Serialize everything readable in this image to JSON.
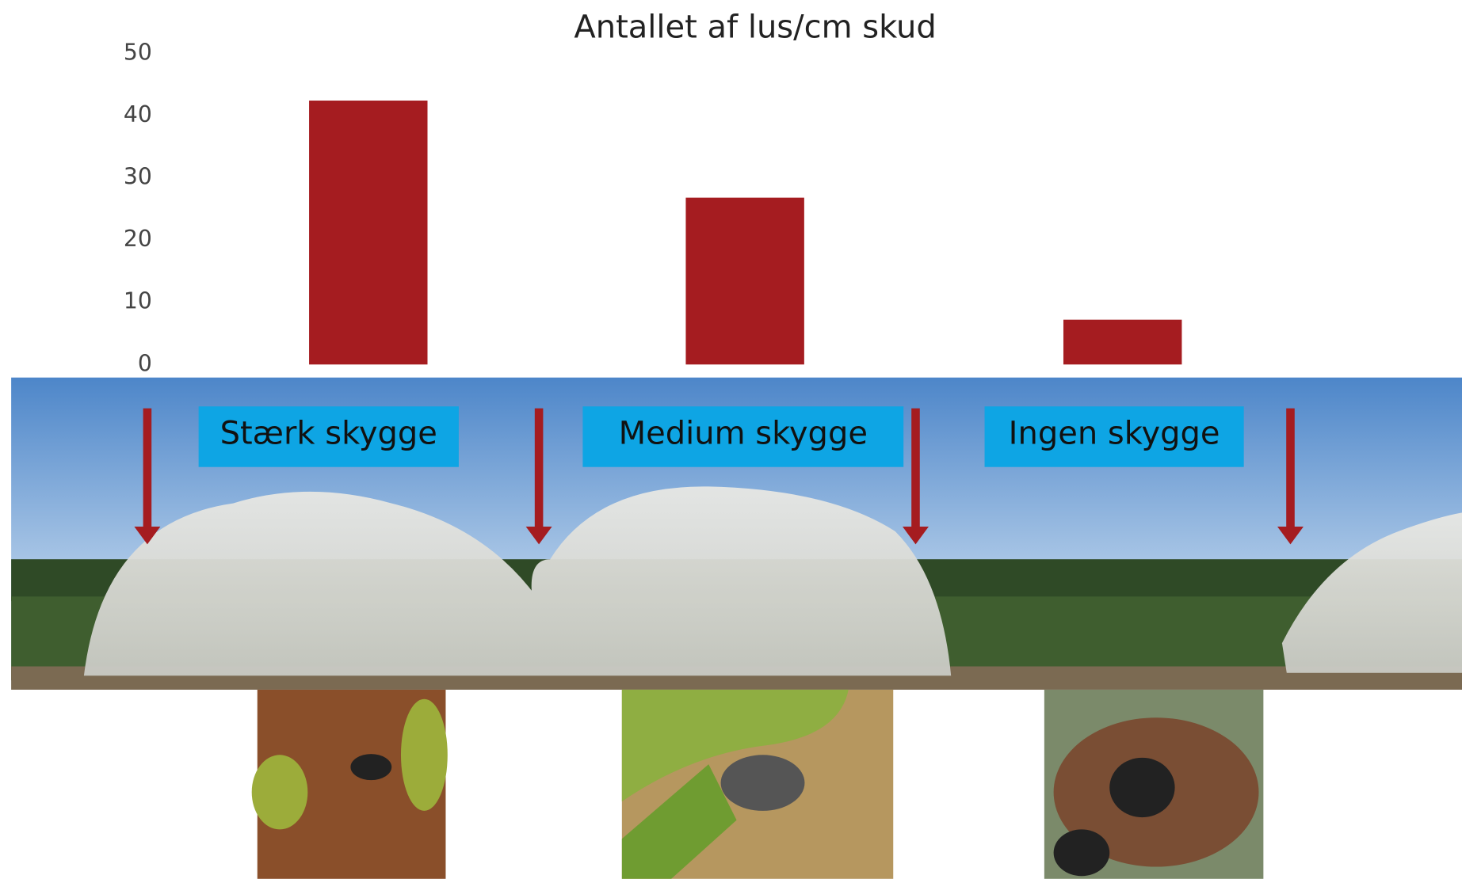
{
  "chart_data": {
    "type": "bar",
    "title": "Antallet af lus/cm skud",
    "categories": [
      "Stærk skygge",
      "Medium skygge",
      "Ingen skygge"
    ],
    "values": [
      42.4,
      26.8,
      7.2
    ],
    "color": "#a51c20",
    "ylim": [
      0,
      50
    ],
    "yticks": [
      0,
      10,
      20,
      30,
      40,
      50
    ],
    "grid": false
  }
}
